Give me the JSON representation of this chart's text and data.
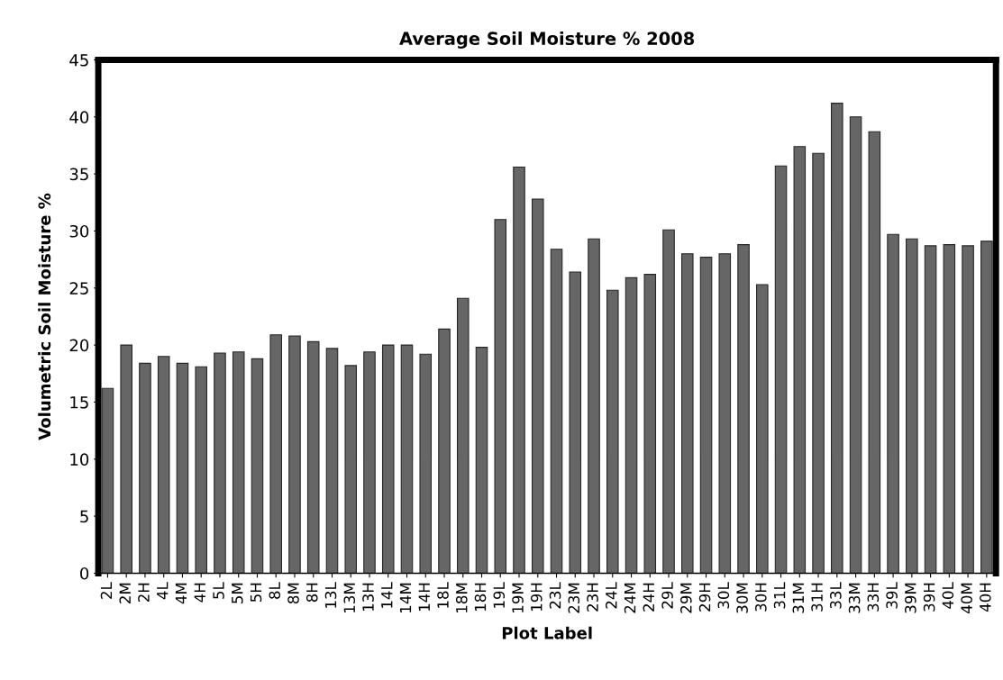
{
  "chart_data": {
    "type": "bar",
    "title": "Average Soil Moisture % 2008",
    "xlabel": "Plot Label",
    "ylabel": "Volumetric Soil Moisture %",
    "categories": [
      "2L",
      "2M",
      "2H",
      "4L",
      "4M",
      "4H",
      "5L",
      "5M",
      "5H",
      "8L",
      "8M",
      "8H",
      "13L",
      "13M",
      "13H",
      "14L",
      "14M",
      "14H",
      "18L",
      "18M",
      "18H",
      "19L",
      "19M",
      "19H",
      "23L",
      "23M",
      "23H",
      "24L",
      "24M",
      "24H",
      "29L",
      "29M",
      "29H",
      "30L",
      "30M",
      "30H",
      "31L",
      "31M",
      "31H",
      "33L",
      "33M",
      "33H",
      "39L",
      "39M",
      "39H",
      "40L",
      "40M",
      "40H"
    ],
    "values": [
      16.2,
      20.0,
      18.4,
      19.0,
      18.4,
      18.1,
      19.3,
      19.4,
      18.8,
      20.9,
      20.8,
      20.3,
      19.7,
      18.2,
      19.4,
      20.0,
      20.0,
      19.2,
      21.4,
      24.1,
      19.8,
      31.0,
      35.6,
      32.8,
      28.4,
      26.4,
      29.3,
      24.8,
      25.9,
      26.2,
      30.1,
      28.0,
      27.7,
      28.0,
      28.8,
      25.3,
      35.7,
      37.4,
      36.8,
      41.2,
      40.0,
      38.7,
      29.7,
      29.3,
      28.7,
      28.8,
      28.7,
      29.1
    ],
    "color": "#666666",
    "ylim": [
      0,
      45
    ],
    "yticks": [
      0,
      5,
      10,
      15,
      20,
      25,
      30,
      35,
      40,
      45
    ],
    "grid": false,
    "legend": false
  }
}
